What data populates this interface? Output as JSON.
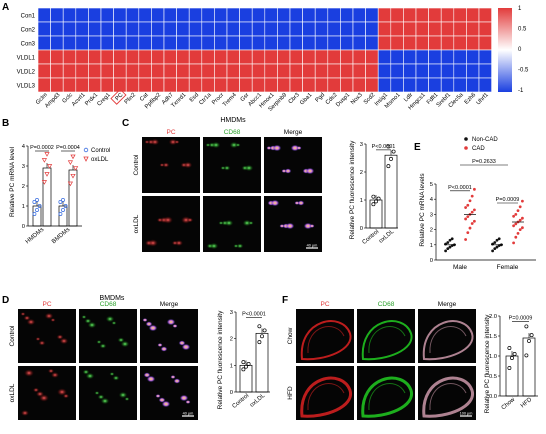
{
  "panels": {
    "A": {
      "label": "A",
      "rows": [
        "Con1",
        "Con2",
        "Con3",
        "VLDL1",
        "VLDL2",
        "VLDL3"
      ],
      "genes": [
        "Gclm",
        "Ampd3",
        "Gclc",
        "Acvrl1",
        "Prdx1",
        "Creg1",
        "PC",
        "Plin2",
        "Cat",
        "Ppfibp2",
        "Adh7",
        "Txnrd1",
        "Esd",
        "Ctr1a",
        "Procr",
        "Trem4",
        "Gsr",
        "Abcc1",
        "Hmox1",
        "Serpinb9",
        "Cbr3",
        "Gba1",
        "Pgd",
        "Cds2",
        "Dusp1",
        "Nox3",
        "Scd2",
        "Insig1",
        "Msmo1",
        "Ldlr",
        "Hmgcs1",
        "Fdft1",
        "Srebf1",
        "Clec5a",
        "Ezh6",
        "Uhrf1"
      ],
      "highlight_gene": "PC",
      "colorbar_ticks": [
        "1",
        "0.5",
        "0",
        "-0.5",
        "-1"
      ],
      "colors": {
        "high": "#e23b3b",
        "low": "#1a3fe0",
        "mid": "#ffffff"
      },
      "chart_data": {
        "type": "heatmap",
        "rows": [
          "Con1",
          "Con2",
          "Con3",
          "VLDL1",
          "VLDL2",
          "VLDL3"
        ],
        "columns_split": {
          "first_group_count": 27
        },
        "values_pattern": "Con rows: -1 for columns 1-27, +1 for columns 28-36; VLDL rows: +1 for columns 1-27, -1 for columns 28-36",
        "zlim": [
          -1,
          1
        ]
      }
    },
    "B": {
      "label": "B",
      "ylabel": "Relative PC mRNA level",
      "yticks": [
        "0",
        "1",
        "2",
        "3",
        "4"
      ],
      "categories": [
        "HMDMs",
        "BMDMs"
      ],
      "legend": [
        {
          "name": "Control",
          "color": "#3b6fe0"
        },
        {
          "name": "oxLDL",
          "color": "#e23b3b"
        }
      ],
      "pvalues": [
        "P=0.0002",
        "P=0.0004"
      ],
      "chart_data": {
        "type": "bar",
        "categories": [
          "HMDMs",
          "BMDMs"
        ],
        "series": [
          {
            "name": "Control",
            "values": [
              1.0,
              1.0
            ]
          },
          {
            "name": "oxLDL",
            "values": [
              2.9,
              2.8
            ]
          }
        ],
        "ylim": [
          0,
          4
        ]
      }
    },
    "C": {
      "label": "C",
      "title": "HMDMs",
      "col_headers": [
        "PC",
        "CD68",
        "Merge"
      ],
      "row_labels": [
        "Control",
        "oxLDL"
      ],
      "scalebar": "40 μm",
      "ylabel": "Relative PC fluorescence intensity",
      "yticks": [
        "0",
        "1",
        "2",
        "3"
      ],
      "categories": [
        "Control",
        "oxLDL"
      ],
      "pvalue": "P<0.0001",
      "chart_data": {
        "type": "bar",
        "categories": [
          "Control",
          "oxLDL"
        ],
        "values": [
          1.0,
          2.6
        ],
        "ylim": [
          0,
          3
        ]
      }
    },
    "D": {
      "label": "D",
      "title": "BMDMs",
      "col_headers": [
        "PC",
        "CD68",
        "Merge"
      ],
      "row_labels": [
        "Control",
        "oxLDL"
      ],
      "scalebar": "40 μm",
      "ylabel": "Relative PC fluorescence intensity",
      "yticks": [
        "0",
        "1",
        "2",
        "3"
      ],
      "categories": [
        "Control",
        "oxLDL"
      ],
      "pvalue": "P<0.0001",
      "chart_data": {
        "type": "bar",
        "categories": [
          "Control",
          "oxLDL"
        ],
        "values": [
          1.0,
          2.2
        ],
        "ylim": [
          0,
          3
        ]
      }
    },
    "E": {
      "label": "E",
      "ylabel": "Relative PC mRNA levels",
      "yticks": [
        "0",
        "1",
        "2",
        "3",
        "4",
        "5"
      ],
      "categories": [
        "Male",
        "Female"
      ],
      "legend": [
        {
          "name": "Non-CAD",
          "color": "#111111"
        },
        {
          "name": "CAD",
          "color": "#e23b3b"
        }
      ],
      "pvalues": [
        "P<0.0001",
        "P=0.2633",
        "P=0.0009"
      ],
      "chart_data": {
        "type": "scatter",
        "categories": [
          "Male",
          "Female"
        ],
        "series": [
          {
            "name": "Non-CAD",
            "values": [
              1.0,
              1.0
            ]
          },
          {
            "name": "CAD",
            "values": [
              3.0,
              2.5
            ]
          }
        ],
        "ylim": [
          0,
          5
        ]
      }
    },
    "F": {
      "label": "F",
      "col_headers": [
        "PC",
        "CD68",
        "Merge"
      ],
      "row_labels": [
        "Chow",
        "HFD"
      ],
      "scalebar": "100 μm",
      "ylabel": "Relative PC fluorescence intensity",
      "yticks": [
        "0.0",
        "0.5",
        "1.0",
        "1.5",
        "2.0"
      ],
      "categories": [
        "Chow",
        "HFD"
      ],
      "pvalue": "P=0.0009",
      "chart_data": {
        "type": "bar",
        "categories": [
          "Chow",
          "HFD"
        ],
        "values": [
          1.0,
          1.45
        ],
        "ylim": [
          0,
          2
        ]
      }
    }
  }
}
